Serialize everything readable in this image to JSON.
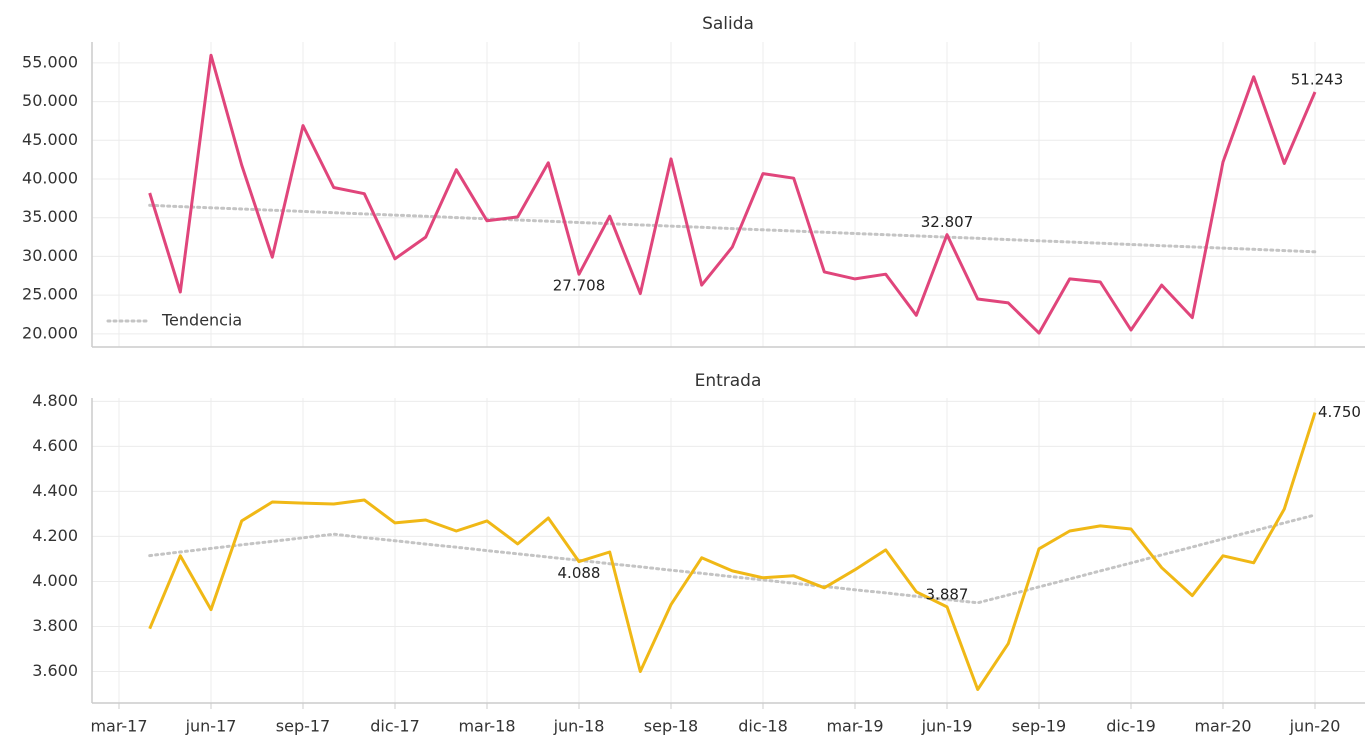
{
  "chart_data": [
    {
      "type": "line",
      "title": "Salida",
      "ylim": [
        18300,
        57700
      ],
      "yticks": [
        {
          "value": 20000,
          "label": "20.000"
        },
        {
          "value": 25000,
          "label": "25.000"
        },
        {
          "value": 30000,
          "label": "30.000"
        },
        {
          "value": 35000,
          "label": "35.000"
        },
        {
          "value": 40000,
          "label": "40.000"
        },
        {
          "value": 45000,
          "label": "45.000"
        },
        {
          "value": 50000,
          "label": "50.000"
        },
        {
          "value": 55000,
          "label": "55.000"
        }
      ],
      "grid": true,
      "legend": "lower left",
      "series": [
        {
          "color": "#e0457b",
          "style": "solid",
          "values": [
            null,
            38200,
            25400,
            56000,
            41800,
            29900,
            46900,
            38900,
            38100,
            29700,
            32500,
            41200,
            34600,
            35100,
            42100,
            27708,
            35200,
            25200,
            42600,
            26300,
            31200,
            40700,
            40100,
            28000,
            27100,
            27700,
            22400,
            32807,
            24500,
            24000,
            20100,
            27100,
            26700,
            20500,
            26300,
            22100,
            42200,
            53200,
            42000,
            51243
          ],
          "value_labels": [
            null,
            null,
            null,
            null,
            null,
            null,
            null,
            null,
            null,
            null,
            null,
            null,
            null,
            null,
            null,
            "27.708",
            null,
            null,
            null,
            null,
            null,
            null,
            null,
            null,
            null,
            null,
            null,
            "32.807",
            null,
            null,
            null,
            null,
            null,
            null,
            null,
            null,
            null,
            null,
            null,
            "51.243"
          ]
        },
        {
          "name": "Tendencia",
          "color": "#c4c4c4",
          "style": "dotted",
          "values": [
            null,
            36600,
            36442,
            36284,
            36126,
            35968,
            35811,
            35653,
            35495,
            35337,
            35179,
            35021,
            34863,
            34705,
            34547,
            34389,
            34232,
            34074,
            33916,
            33758,
            33600,
            33442,
            33284,
            33126,
            32968,
            32811,
            32653,
            32495,
            32337,
            32179,
            32021,
            31863,
            31705,
            31547,
            31389,
            31232,
            31074,
            30916,
            30758,
            30600
          ]
        }
      ]
    },
    {
      "type": "line",
      "title": "Entrada",
      "categories": [
        "mar-17",
        null,
        null,
        "jun-17",
        null,
        null,
        "sep-17",
        null,
        null,
        "dic-17",
        null,
        null,
        "mar-18",
        null,
        null,
        "jun-18",
        null,
        null,
        "sep-18",
        null,
        null,
        "dic-18",
        null,
        null,
        "mar-19",
        null,
        null,
        "jun-19",
        null,
        null,
        "sep-19",
        null,
        null,
        "dic-19",
        null,
        null,
        "mar-20",
        null,
        null,
        "jun-20"
      ],
      "ylim": [
        3460,
        4815
      ],
      "yticks": [
        {
          "value": 3600,
          "label": "3.600"
        },
        {
          "value": 3800,
          "label": "3.800"
        },
        {
          "value": 4000,
          "label": "4.000"
        },
        {
          "value": 4200,
          "label": "4.200"
        },
        {
          "value": 4400,
          "label": "4.400"
        },
        {
          "value": 4600,
          "label": "4.600"
        },
        {
          "value": 4800,
          "label": "4.800"
        }
      ],
      "grid": true,
      "series": [
        {
          "color": "#f0b816",
          "style": "solid",
          "values": [
            null,
            3790,
            4114,
            3875,
            4269,
            4353,
            4348,
            4344,
            4362,
            4260,
            4273,
            4224,
            4269,
            4167,
            4282,
            4088,
            4131,
            3600,
            3897,
            4105,
            4047,
            4016,
            4025,
            3972,
            4052,
            4140,
            3954,
            3887,
            3520,
            3724,
            4145,
            4224,
            4247,
            4233,
            4061,
            3937,
            4114,
            4083,
            4322,
            4750
          ],
          "value_labels": [
            null,
            null,
            null,
            null,
            null,
            null,
            null,
            null,
            null,
            null,
            null,
            null,
            null,
            null,
            null,
            "4.088",
            null,
            null,
            null,
            null,
            null,
            null,
            null,
            null,
            null,
            null,
            null,
            "3.887",
            null,
            null,
            null,
            null,
            null,
            null,
            null,
            null,
            null,
            null,
            null,
            "4.750"
          ]
        },
        {
          "color": "#c4c4c4",
          "style": "dotted",
          "values": [
            null,
            4115,
            4131,
            4147,
            4163,
            4178,
            4194,
            4210,
            4195,
            4181,
            4166,
            4152,
            4137,
            4123,
            4108,
            4094,
            4079,
            4065,
            4050,
            4036,
            4021,
            4007,
            3992,
            3978,
            3963,
            3949,
            3934,
            3920,
            3905,
            3940,
            3976,
            4011,
            4047,
            4082,
            4118,
            4153,
            4189,
            4224,
            4260,
            4295
          ]
        }
      ]
    }
  ]
}
